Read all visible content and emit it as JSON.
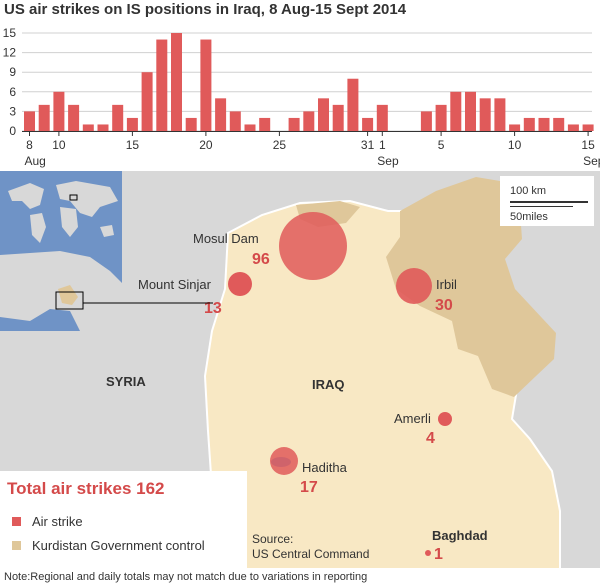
{
  "title": "US air strikes on IS positions in Iraq, 8 Aug-15 Sept 2014",
  "colors": {
    "accent": "#e05a5a",
    "kurdistan": "#dfc79a",
    "land": "#f8e8c4",
    "bg_land": "#d8d8d8",
    "water": "#6f93c6"
  },
  "chart_data": {
    "type": "bar",
    "title": "US air strikes on IS positions in Iraq, 8 Aug-15 Sept 2014",
    "x": [
      "8 Aug",
      "9 Aug",
      "10 Aug",
      "11 Aug",
      "12 Aug",
      "13 Aug",
      "14 Aug",
      "15 Aug",
      "16 Aug",
      "17 Aug",
      "18 Aug",
      "19 Aug",
      "20 Aug",
      "21 Aug",
      "22 Aug",
      "23 Aug",
      "24 Aug",
      "25 Aug",
      "26 Aug",
      "27 Aug",
      "28 Aug",
      "29 Aug",
      "30 Aug",
      "31 Aug",
      "1 Sep",
      "2 Sep",
      "3 Sep",
      "4 Sep",
      "5 Sep",
      "6 Sep",
      "7 Sep",
      "8 Sep",
      "9 Sep",
      "10 Sep",
      "11 Sep",
      "12 Sep",
      "13 Sep",
      "14 Sep",
      "15 Sep"
    ],
    "values": [
      3,
      4,
      6,
      4,
      1,
      1,
      4,
      2,
      9,
      14,
      15,
      2,
      14,
      5,
      3,
      1,
      2,
      0,
      2,
      3,
      5,
      4,
      8,
      2,
      4,
      0,
      0,
      3,
      4,
      6,
      6,
      5,
      5,
      1,
      2,
      2,
      2,
      1,
      1
    ],
    "ylim": [
      0,
      15
    ],
    "yticks": [
      "0",
      "3",
      "6",
      "9",
      "12",
      "15"
    ],
    "xticks": [
      {
        "label": "8",
        "index": 0
      },
      {
        "label": "10",
        "index": 2
      },
      {
        "label": "15",
        "index": 7
      },
      {
        "label": "20",
        "index": 12
      },
      {
        "label": "25",
        "index": 17
      },
      {
        "label": "31",
        "index": 23
      },
      {
        "label": "1",
        "index": 24
      },
      {
        "label": "5",
        "index": 28
      },
      {
        "label": "10",
        "index": 33
      },
      {
        "label": "15",
        "index": 38
      }
    ],
    "month_labels": [
      {
        "label": "Aug",
        "index": 0
      },
      {
        "label": "Sep",
        "index": 24
      },
      {
        "label": "Sep",
        "index": 38
      }
    ]
  },
  "map": {
    "countries": {
      "syria": "SYRIA",
      "iraq": "IRAQ"
    },
    "locations": [
      {
        "name": "Mosul Dam",
        "count": "96"
      },
      {
        "name": "Mount Sinjar",
        "count": "13"
      },
      {
        "name": "Irbil",
        "count": "30"
      },
      {
        "name": "Amerli",
        "count": "4"
      },
      {
        "name": "Haditha",
        "count": "17"
      },
      {
        "name": "Baghdad",
        "count": "1"
      }
    ],
    "scale": {
      "km": "100 km",
      "miles": "50miles"
    }
  },
  "total_label": "Total air strikes 162",
  "legend": {
    "air_strike": "Air strike",
    "kurdistan": "Kurdistan Government control"
  },
  "source": {
    "line1": "Source:",
    "line2": "US Central Command"
  },
  "note": "Note:Regional and daily totals may not match due to variations in reporting"
}
